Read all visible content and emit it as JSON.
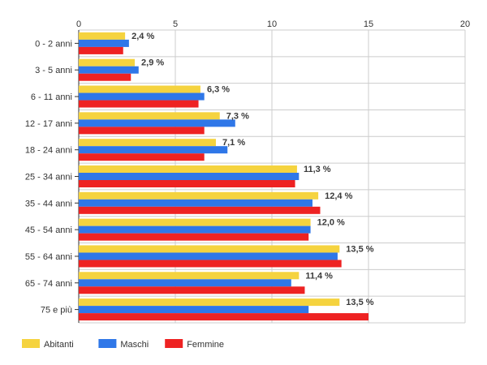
{
  "chart_data": {
    "type": "bar",
    "orientation": "horizontal",
    "title": "",
    "xlabel": "",
    "ylabel": "",
    "xlim": [
      0,
      20
    ],
    "x_ticks": [
      "0",
      "5",
      "10",
      "15",
      "20"
    ],
    "grid": true,
    "legend_position": "bottom-left",
    "categories": [
      "0 - 2 anni",
      "3 - 5 anni",
      "6 - 11 anni",
      "12 - 17 anni",
      "18 - 24 anni",
      "25 - 34 anni",
      "35 - 44 anni",
      "45 - 54 anni",
      "55 - 64 anni",
      "65 - 74 anni",
      "75 e più"
    ],
    "series": [
      {
        "name": "Abitanti",
        "color": "#f5d33f",
        "values": [
          2.4,
          2.9,
          6.3,
          7.3,
          7.1,
          11.3,
          12.4,
          12.0,
          13.5,
          11.4,
          13.5
        ]
      },
      {
        "name": "Maschi",
        "color": "#2f77e8",
        "values": [
          2.6,
          3.1,
          6.5,
          8.1,
          7.7,
          11.4,
          12.1,
          12.0,
          13.4,
          11.0,
          11.9
        ]
      },
      {
        "name": "Femmine",
        "color": "#ee2222",
        "values": [
          2.3,
          2.7,
          6.2,
          6.5,
          6.5,
          11.2,
          12.5,
          11.9,
          13.6,
          11.7,
          15.0
        ]
      }
    ],
    "data_labels": [
      "2,4 %",
      "2,9 %",
      "6,3 %",
      "7,3 %",
      "7,1 %",
      "11,3 %",
      "12,4 %",
      "12,0 %",
      "13,5 %",
      "11,4 %",
      "13,5 %"
    ]
  }
}
